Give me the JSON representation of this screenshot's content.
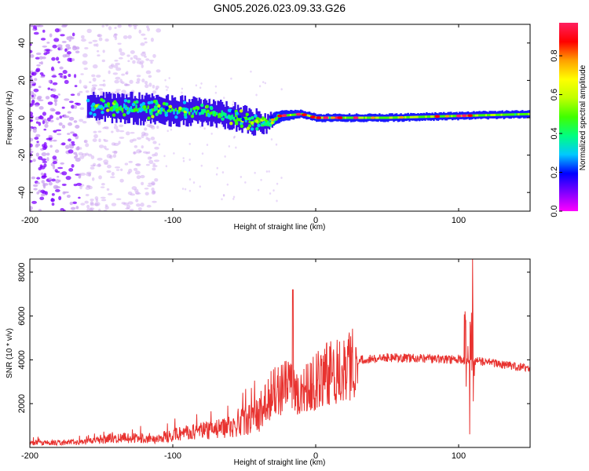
{
  "figure": {
    "title": "GN05.2026.023.09.33.G26"
  },
  "chart_data": [
    {
      "type": "heatmap",
      "name": "spectrogram",
      "xlabel": "Height of straight line (km)",
      "ylabel": "Frequency (Hz)",
      "xlim": [
        -200,
        150
      ],
      "ylim": [
        -50,
        50
      ],
      "xticks": [
        -200,
        -100,
        0,
        100
      ],
      "yticks": [
        -40,
        -20,
        0,
        20,
        40
      ],
      "colorbar": {
        "label": "Normalized spectral amplitude",
        "range": [
          0,
          0.97
        ],
        "ticks": [
          0.0,
          0.2,
          0.4,
          0.6,
          0.8
        ],
        "colors": [
          "#ff00ff",
          "#7f00ff",
          "#0000ff",
          "#00c8ff",
          "#00ff80",
          "#40ff00",
          "#c0ff00",
          "#ffff00",
          "#ffa000",
          "#ff0000",
          "#ff2060"
        ]
      },
      "ridge": [
        {
          "x": -160,
          "f": 6,
          "w": 6
        },
        {
          "x": -130,
          "f": 5,
          "w": 7
        },
        {
          "x": -100,
          "f": 4,
          "w": 7
        },
        {
          "x": -80,
          "f": 3,
          "w": 6
        },
        {
          "x": -60,
          "f": 1,
          "w": 6
        },
        {
          "x": -45,
          "f": -2,
          "w": 6
        },
        {
          "x": -35,
          "f": -3,
          "w": 4
        },
        {
          "x": -25,
          "f": 1,
          "w": 3
        },
        {
          "x": -10,
          "f": 2,
          "w": 2
        },
        {
          "x": 0,
          "f": 0,
          "w": 2
        },
        {
          "x": 50,
          "f": 0,
          "w": 2
        },
        {
          "x": 100,
          "f": 1,
          "w": 2
        },
        {
          "x": 150,
          "f": 2,
          "w": 2
        }
      ],
      "scatter_region": {
        "x_from": -200,
        "x_to": -110,
        "f_from": -50,
        "f_to": 50
      }
    },
    {
      "type": "line",
      "name": "snr",
      "xlabel": "Height of straight line (km)",
      "ylabel": "SNR (10 * v/v)",
      "xlim": [
        -200,
        150
      ],
      "ylim": [
        0,
        8600
      ],
      "xticks": [
        -200,
        -100,
        0,
        100
      ],
      "yticks": [
        2000,
        4000,
        6000,
        8000
      ],
      "color": "#e8322f",
      "envelope": [
        {
          "x": -200,
          "y": 200
        },
        {
          "x": -160,
          "y": 250
        },
        {
          "x": -140,
          "y": 450
        },
        {
          "x": -110,
          "y": 400
        },
        {
          "x": -100,
          "y": 600
        },
        {
          "x": -60,
          "y": 900
        },
        {
          "x": -40,
          "y": 1500
        },
        {
          "x": -30,
          "y": 2500
        },
        {
          "x": -20,
          "y": 2800
        },
        {
          "x": -10,
          "y": 2600
        },
        {
          "x": 0,
          "y": 3000
        },
        {
          "x": 10,
          "y": 3400
        },
        {
          "x": 20,
          "y": 3800
        },
        {
          "x": 30,
          "y": 4000
        },
        {
          "x": 50,
          "y": 4100
        },
        {
          "x": 80,
          "y": 4050
        },
        {
          "x": 100,
          "y": 4000
        },
        {
          "x": 120,
          "y": 3900
        },
        {
          "x": 150,
          "y": 3600
        }
      ],
      "spikes": [
        {
          "x": -16,
          "y": 7200
        },
        {
          "x": 105,
          "y": 5800
        },
        {
          "x": 110,
          "y": 8600
        },
        {
          "x": 108,
          "y": 600
        }
      ]
    }
  ]
}
